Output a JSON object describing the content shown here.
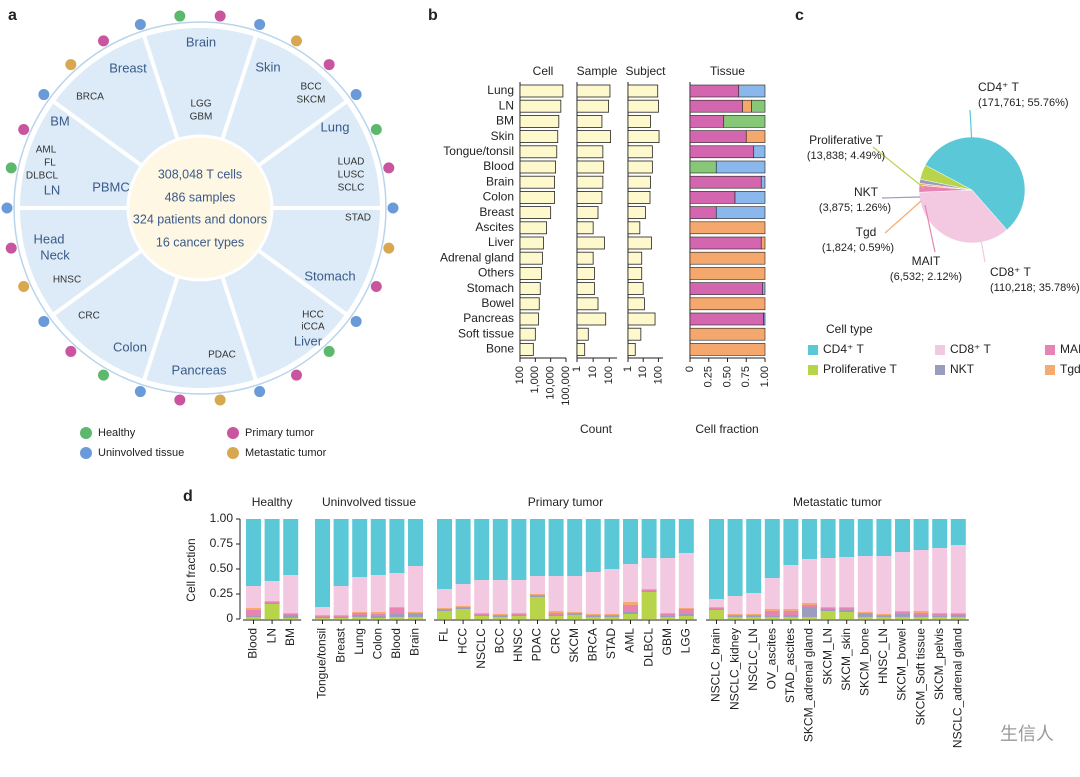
{
  "panel_a": {
    "label": "a",
    "center": [
      "308,048 T cells",
      "486 samples",
      "324 patients and donors",
      "16 cancer types"
    ],
    "regions": [
      {
        "name": [
          "Brain"
        ],
        "types": [
          "LGG",
          "GBM"
        ]
      },
      {
        "name": [
          "Skin"
        ],
        "types": [
          "BCC",
          "SKCM"
        ]
      },
      {
        "name": [
          "Lung"
        ],
        "types": [
          "LUAD",
          "LUSC",
          "SCLC"
        ]
      },
      {
        "name": [
          "Stomach"
        ],
        "types": [
          "STAD"
        ]
      },
      {
        "name": [
          "Liver"
        ],
        "types": [
          "HCC",
          "iCCA"
        ]
      },
      {
        "name": [
          "Pancreas"
        ],
        "types": [
          "PDAC"
        ]
      },
      {
        "name": [
          "Colon"
        ],
        "types": [
          "CRC"
        ]
      },
      {
        "name": [
          "Head",
          "Neck"
        ],
        "types": [
          "HNSC"
        ]
      },
      {
        "name": [
          "BM",
          "LN",
          "PBMC"
        ],
        "types": [
          "AML",
          "FL",
          "DLBCL"
        ]
      },
      {
        "name": [
          "Breast"
        ],
        "types": [
          "BRCA"
        ]
      }
    ],
    "legend_colors": [
      "#c8559e",
      "#d8a850",
      "#5cb86c",
      "#6a9ad8"
    ]
  },
  "chart_data": [
    {
      "type": "bar",
      "label": "b",
      "categories": [
        "Lung",
        "LN",
        "BM",
        "Skin",
        "Tongue/tonsil",
        "Blood",
        "Brain",
        "Colon",
        "Breast",
        "Ascites",
        "Liver",
        "Adrenal gland",
        "Others",
        "Stomach",
        "Bowel",
        "Pancreas",
        "Soft tissue",
        "Bone"
      ],
      "color": "#fdf9cc",
      "xlabel": "Count",
      "columns": [
        {
          "title": "Cell",
          "log_scale": true,
          "xlim": [
            100,
            100000
          ],
          "xticks": [
            100,
            {
              "value": 1000,
              "label": "1,000"
            },
            {
              "value": 10000,
              "label": "10,000"
            },
            {
              "value": 100000,
              "label": "100,000"
            }
          ],
          "values": [
            63000,
            46000,
            34000,
            29000,
            25000,
            21000,
            18000,
            18000,
            10000,
            5400,
            3400,
            2900,
            2500,
            2100,
            1800,
            1600,
            1000,
            740
          ]
        },
        {
          "title": "Sample",
          "log_scale": true,
          "xlim": [
            1,
            300
          ],
          "xticks": [
            1,
            10,
            100
          ],
          "values": [
            110,
            90,
            35,
            120,
            40,
            45,
            40,
            35,
            20,
            10,
            50,
            10,
            12,
            12,
            20,
            60,
            5,
            3
          ]
        },
        {
          "title": "Subject",
          "log_scale": true,
          "xlim": [
            1,
            200
          ],
          "xticks": [
            1,
            10,
            100
          ],
          "values": [
            90,
            100,
            30,
            110,
            40,
            40,
            30,
            28,
            14,
            6,
            35,
            8,
            8,
            10,
            12,
            60,
            7,
            3
          ]
        }
      ],
      "tissue": {
        "title": "Tissue",
        "xlabel": "Cell fraction",
        "xlim": [
          0,
          1
        ],
        "xticks": [
          0,
          0.25,
          {
            "value": 0.5,
            "label": "0.50"
          },
          0.75,
          {
            "value": 1,
            "label": "1.00"
          }
        ],
        "series": [
          {
            "name": "Primary tumor",
            "color": "#d466b0",
            "values": [
              0.65,
              0.7,
              0.45,
              0.75,
              0.85,
              0,
              0.95,
              0.6,
              0.35,
              0,
              0.95,
              0,
              0,
              0.97,
              0,
              0.98,
              0,
              0
            ]
          },
          {
            "name": "Metastatic tumor",
            "color": "#f5a86e",
            "values": [
              0,
              0.12,
              0,
              0.25,
              0,
              0,
              0,
              0,
              0,
              1,
              0.05,
              1,
              1,
              0,
              1,
              0,
              1,
              1
            ]
          },
          {
            "name": "Healthy",
            "color": "#86c878",
            "values": [
              0,
              0.18,
              0.55,
              0,
              0,
              0.35,
              0,
              0,
              0,
              0,
              0,
              0,
              0,
              0,
              0,
              0,
              0,
              0
            ]
          },
          {
            "name": "Uninvolved tissue",
            "color": "#8ab8ec",
            "values": [
              0.35,
              0,
              0,
              0,
              0.15,
              0.65,
              0.05,
              0.4,
              0.65,
              0,
              0,
              0,
              0,
              0.03,
              0,
              0.02,
              0,
              0
            ]
          }
        ]
      }
    },
    {
      "type": "pie",
      "label": "c",
      "legend_title": "Cell type",
      "categories": [
        "CD4⁺ T",
        "CD8⁺ T",
        "MAIT",
        "Tgd",
        "NKT",
        "Proliferative T"
      ],
      "values": [
        171761,
        110218,
        6532,
        1824,
        3875,
        13838
      ],
      "value_labels": [
        "(171,761; 55.76%)",
        "(110,218; 35.78%)",
        "(6,532; 2.12%)",
        "(1,824; 0.59%)",
        "(3,875; 1.26%)",
        "(13,838; 4.49%)"
      ],
      "colors": [
        "#5bc8d8",
        "#f2c9e0",
        "#e884b4",
        "#f5aa70",
        "#9c9cc0",
        "#b8d44a"
      ]
    },
    {
      "type": "stacked_bar",
      "label": "d",
      "ylabel": "Cell fraction",
      "ylim": [
        0,
        1
      ],
      "yticks": [
        0,
        0.25,
        {
          "value": 0.5,
          "label": "0.50"
        },
        0.75,
        {
          "value": 1,
          "label": "1.00"
        }
      ],
      "groups": [
        {
          "label": "Healthy",
          "categories": [
            "Blood",
            "LN",
            "BM"
          ]
        },
        {
          "label": "Uninvolved tissue",
          "categories": [
            "Tongue/tonsil",
            "Breast",
            "Lung",
            "Colon",
            "Blood",
            "Brain"
          ]
        },
        {
          "label": "Primary tumor",
          "categories": [
            "FL",
            "HCC",
            "NSCLC",
            "BCC",
            "HNSC",
            "PDAC",
            "CRC",
            "SKCM",
            "BRCA",
            "STAD",
            "AML",
            "DLBCL",
            "GBM",
            "LGG"
          ]
        },
        {
          "label": "Metastatic tumor",
          "categories": [
            "NSCLC_brain",
            "NSCLC_kidney",
            "NSCLC_LN",
            "OV_ascites",
            "STAD_ascites",
            "SKCM_adrenal gland",
            "SKCM_LN",
            "SKCM_skin",
            "SKCM_bone",
            "HNSC_LN",
            "SKCM_bowel",
            "SKCM_Soft tissue",
            "SKCM_pelvis",
            "NSCLC_adrenal gland"
          ]
        }
      ],
      "series": [
        {
          "color": "#b8d44a",
          "values": [
            0.02,
            0.15,
            0.01,
            0.01,
            0.01,
            0.02,
            0.01,
            0.02,
            0.02,
            0.08,
            0.1,
            0.03,
            0.02,
            0.03,
            0.22,
            0.03,
            0.04,
            0.02,
            0.02,
            0.05,
            0.27,
            0.02,
            0.03,
            0.09,
            0.02,
            0.02,
            0.02,
            0.02,
            0.02,
            0.08,
            0.07,
            0.02,
            0.02,
            0.02,
            0.02,
            0.02,
            0.02
          ]
        },
        {
          "color": "#9c9cc0",
          "values": [
            0.01,
            0.01,
            0.03,
            0.01,
            0.01,
            0.02,
            0.02,
            0.03,
            0.03,
            0.01,
            0.01,
            0.01,
            0.01,
            0.01,
            0.01,
            0.01,
            0.01,
            0.01,
            0.01,
            0.02,
            0.01,
            0.01,
            0.02,
            0.01,
            0.01,
            0.01,
            0.01,
            0.02,
            0.1,
            0.02,
            0.02,
            0.03,
            0.01,
            0.03,
            0.02,
            0.01,
            0.02
          ]
        },
        {
          "color": "#e884b4",
          "values": [
            0.06,
            0.01,
            0.01,
            0.01,
            0.01,
            0.02,
            0.02,
            0.06,
            0.01,
            0.01,
            0.01,
            0.01,
            0.01,
            0.01,
            0.01,
            0.02,
            0.01,
            0.01,
            0.01,
            0.07,
            0.01,
            0.02,
            0.05,
            0.01,
            0.01,
            0.01,
            0.05,
            0.04,
            0.02,
            0.01,
            0.02,
            0.01,
            0.01,
            0.02,
            0.02,
            0.02,
            0.01
          ]
        },
        {
          "color": "#f5aa70",
          "values": [
            0.02,
            0.01,
            0.01,
            0.01,
            0.01,
            0.01,
            0.02,
            0.01,
            0.01,
            0.01,
            0.01,
            0.01,
            0.01,
            0.01,
            0.01,
            0.02,
            0.01,
            0.01,
            0.01,
            0.03,
            0.01,
            0.01,
            0.01,
            0.01,
            0.01,
            0.01,
            0.02,
            0.02,
            0.02,
            0.01,
            0.01,
            0.01,
            0.01,
            0.01,
            0.02,
            0.01,
            0.01
          ]
        },
        {
          "color": "#f2c9e0",
          "values": [
            0.22,
            0.2,
            0.38,
            0.08,
            0.29,
            0.35,
            0.37,
            0.34,
            0.46,
            0.19,
            0.22,
            0.33,
            0.34,
            0.33,
            0.18,
            0.35,
            0.36,
            0.42,
            0.45,
            0.38,
            0.31,
            0.55,
            0.55,
            0.08,
            0.18,
            0.21,
            0.31,
            0.44,
            0.44,
            0.49,
            0.5,
            0.56,
            0.58,
            0.59,
            0.61,
            0.65,
            0.68
          ]
        },
        {
          "color": "#5bc8d8",
          "values": [
            0.67,
            0.62,
            0.56,
            0.88,
            0.67,
            0.58,
            0.56,
            0.54,
            0.47,
            0.7,
            0.65,
            0.61,
            0.61,
            0.61,
            0.57,
            0.57,
            0.57,
            0.53,
            0.5,
            0.45,
            0.39,
            0.39,
            0.34,
            0.8,
            0.77,
            0.74,
            0.59,
            0.46,
            0.4,
            0.39,
            0.38,
            0.37,
            0.37,
            0.33,
            0.31,
            0.29,
            0.26
          ]
        }
      ]
    }
  ],
  "watermark": "生信人"
}
